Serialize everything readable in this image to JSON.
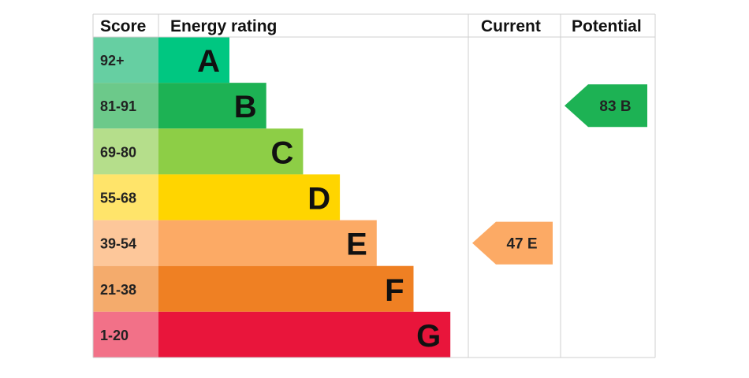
{
  "chart_data": {
    "type": "bar",
    "title": "",
    "headers": {
      "score": "Score",
      "rating": "Energy rating",
      "current": "Current",
      "potential": "Potential"
    },
    "bands": [
      {
        "score": "92+",
        "letter": "A",
        "color": "#00c781",
        "score_bg": "#66cfa2"
      },
      {
        "score": "81-91",
        "letter": "B",
        "color": "#1db254",
        "score_bg": "#6cc98a"
      },
      {
        "score": "69-80",
        "letter": "C",
        "color": "#8dce46",
        "score_bg": "#b5de8b"
      },
      {
        "score": "55-68",
        "letter": "D",
        "color": "#ffd500",
        "score_bg": "#ffe46a"
      },
      {
        "score": "39-54",
        "letter": "E",
        "color": "#fcaa65",
        "score_bg": "#fdc79a"
      },
      {
        "score": "21-38",
        "letter": "F",
        "color": "#ef8023",
        "score_bg": "#f4ab6c"
      },
      {
        "score": "1-20",
        "letter": "G",
        "color": "#e9153b",
        "score_bg": "#f27188"
      }
    ],
    "current": {
      "value": 47,
      "letter": "E",
      "label": "47  E",
      "color": "#fcaa65"
    },
    "potential": {
      "value": 83,
      "letter": "B",
      "label": "83  B",
      "color": "#1db254"
    }
  }
}
